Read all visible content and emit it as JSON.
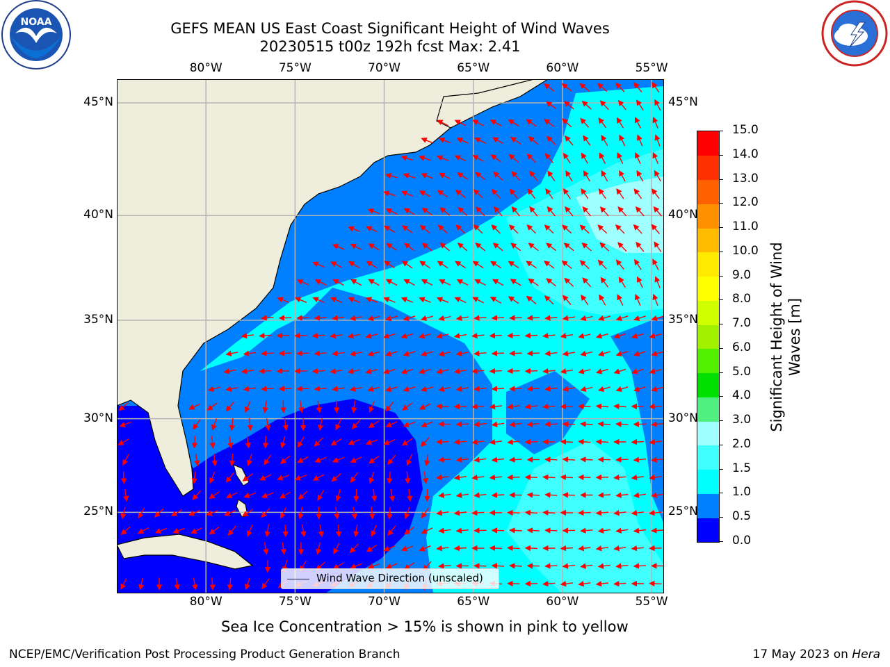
{
  "header": {
    "title_line1": "GEFS MEAN US East Coast Significant Height of Wind Waves",
    "title_line2": "20230515 t00z 192h fcst   Max: 2.41"
  },
  "logos": {
    "noaa_text": "NOAA",
    "nws_text": "NATIONAL WEATHER SERVICE"
  },
  "map": {
    "lon_range": [
      -85,
      -54.3
    ],
    "lat_range": [
      20.5,
      46
    ],
    "lon_ticks": [
      "80°W",
      "75°W",
      "70°W",
      "65°W",
      "60°W",
      "55°W"
    ],
    "lat_ticks": [
      "45°N",
      "40°N",
      "35°N",
      "30°N",
      "25°N"
    ],
    "land_color": "#efeedd",
    "arrow_color": "#ff0000",
    "grid": true,
    "legend_label": "Wind Wave Direction (unscaled)"
  },
  "colorbar": {
    "title": "Significant Height of Wind Waves [m]",
    "levels": [
      "0.0",
      "0.5",
      "1.0",
      "1.5",
      "2.0",
      "3.0",
      "4.0",
      "5.0",
      "6.0",
      "7.0",
      "8.0",
      "9.0",
      "10.0",
      "11.0",
      "12.0",
      "13.0",
      "14.0",
      "15.0"
    ],
    "colors": [
      "#0000ff",
      "#0080ff",
      "#00ffff",
      "#40ffff",
      "#a0ffff",
      "#50f080",
      "#00e000",
      "#50f000",
      "#a0f000",
      "#d0ff00",
      "#ffff00",
      "#ffea00",
      "#ffbb00",
      "#ff9000",
      "#ff6000",
      "#ff3000",
      "#ff0000"
    ]
  },
  "caption": "Sea Ice Concentration > 15% is shown in pink to yellow",
  "footer": {
    "left": "NCEP/EMC/Verification Post Processing Product Generation Branch",
    "right_date": "17 May 2023 on ",
    "right_host": "Hera"
  }
}
